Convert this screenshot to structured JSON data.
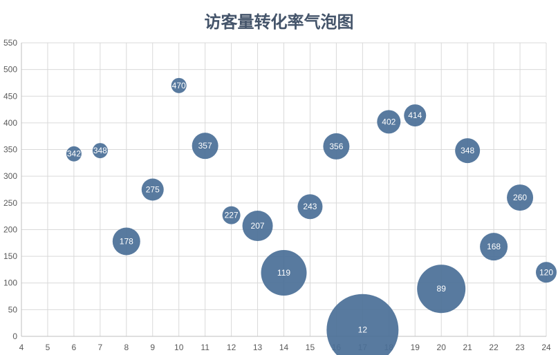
{
  "chart_data": {
    "type": "scatter",
    "subtype": "bubble",
    "title": "访客量转化率气泡图",
    "xlabel": "",
    "ylabel": "",
    "xlim": [
      4,
      24
    ],
    "ylim": [
      0,
      550
    ],
    "xticks": [
      4,
      5,
      6,
      7,
      8,
      9,
      10,
      11,
      12,
      13,
      14,
      15,
      16,
      17,
      18,
      19,
      20,
      21,
      22,
      23,
      24
    ],
    "yticks": [
      0,
      50,
      100,
      150,
      200,
      250,
      300,
      350,
      400,
      450,
      500,
      550
    ],
    "grid": true,
    "legend": "none",
    "colors": {
      "bubble": "#4a6f97",
      "grid": "#d9d9d9",
      "axis": "#bfbfbf",
      "title": "#44546a"
    },
    "points": [
      {
        "x": 6,
        "y": 342,
        "label": "342",
        "size": 11
      },
      {
        "x": 7,
        "y": 348,
        "label": "348",
        "size": 11
      },
      {
        "x": 8,
        "y": 178,
        "label": "178",
        "size": 20
      },
      {
        "x": 9,
        "y": 275,
        "label": "275",
        "size": 16
      },
      {
        "x": 10,
        "y": 470,
        "label": "470",
        "size": 11
      },
      {
        "x": 11,
        "y": 357,
        "label": "357",
        "size": 19
      },
      {
        "x": 12,
        "y": 227,
        "label": "227",
        "size": 13
      },
      {
        "x": 13,
        "y": 207,
        "label": "207",
        "size": 22
      },
      {
        "x": 14,
        "y": 119,
        "label": "119",
        "size": 33
      },
      {
        "x": 15,
        "y": 243,
        "label": "243",
        "size": 18
      },
      {
        "x": 16,
        "y": 356,
        "label": "356",
        "size": 19
      },
      {
        "x": 17,
        "y": 12,
        "label": "12",
        "size": 52
      },
      {
        "x": 18,
        "y": 402,
        "label": "402",
        "size": 17
      },
      {
        "x": 19,
        "y": 414,
        "label": "414",
        "size": 16
      },
      {
        "x": 20,
        "y": 89,
        "label": "89",
        "size": 35
      },
      {
        "x": 21,
        "y": 348,
        "label": "348",
        "size": 18
      },
      {
        "x": 22,
        "y": 168,
        "label": "168",
        "size": 20
      },
      {
        "x": 23,
        "y": 260,
        "label": "260",
        "size": 19
      },
      {
        "x": 24,
        "y": 120,
        "label": "120",
        "size": 15
      }
    ]
  }
}
